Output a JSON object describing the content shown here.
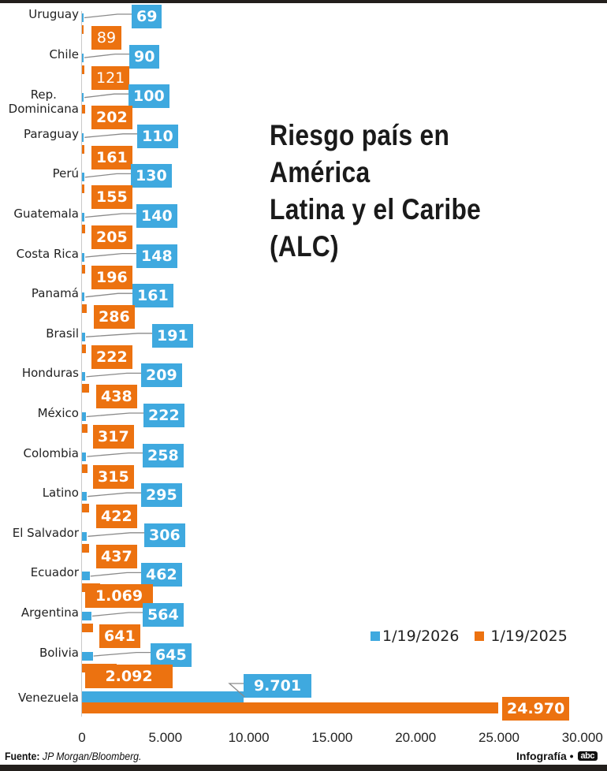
{
  "chart_data": {
    "type": "bar",
    "orientation": "horizontal",
    "title": "Riesgo país en América Latina y el Caribe (ALC)",
    "xlabel": "",
    "ylabel": "",
    "xlim": [
      0,
      30000
    ],
    "x_ticks": [
      "0",
      "5.000",
      "10.000",
      "15.000",
      "20.000",
      "25.000",
      "30.000"
    ],
    "grid": false,
    "legend_position": "lower-right",
    "categories": [
      "Uruguay",
      "Chile",
      "Rep. Dominicana",
      "Paraguay",
      "Perú",
      "Guatemala",
      "Costa Rica",
      "Panamá",
      "Brasil",
      "Honduras",
      "México",
      "Colombia",
      "Latino",
      "El Salvador",
      "Ecuador",
      "Argentina",
      "Bolivia",
      "Venezuela"
    ],
    "series": [
      {
        "name": "1/19/2026",
        "color": "#3fa9df",
        "values": [
          69,
          90,
          100,
          110,
          130,
          140,
          148,
          161,
          191,
          209,
          222,
          258,
          295,
          306,
          462,
          564,
          645,
          9701
        ],
        "labels": [
          "69",
          "90",
          "100",
          "110",
          "130",
          "140",
          "148",
          "161",
          "191",
          "209",
          "222",
          "258",
          "295",
          "306",
          "462",
          "564",
          "645",
          "9.701"
        ]
      },
      {
        "name": "1/19/2025",
        "color": "#ec7210",
        "values": [
          89,
          121,
          202,
          161,
          155,
          205,
          196,
          286,
          222,
          438,
          317,
          315,
          422,
          437,
          1069,
          641,
          2092,
          24970
        ],
        "labels": [
          "89",
          "121",
          "202",
          "161",
          "155",
          "205",
          "196",
          "286",
          "222",
          "438",
          "317",
          "315",
          "422",
          "437",
          "1.069",
          "641",
          "2.092",
          "24.970"
        ]
      }
    ]
  },
  "header": {
    "title_line1": "Riesgo país en América",
    "title_line2": "Latina y el Caribe (ALC)"
  },
  "legend": {
    "items": [
      {
        "label": "1/19/2026",
        "color": "#3fa9df"
      },
      {
        "label": "1/19/2025",
        "color": "#ec7210"
      }
    ]
  },
  "footer": {
    "source_label": "Fuente:",
    "source_text": "JP Morgan/Bloomberg.",
    "credit_label": "Infografía •",
    "logo_text": "abc"
  }
}
